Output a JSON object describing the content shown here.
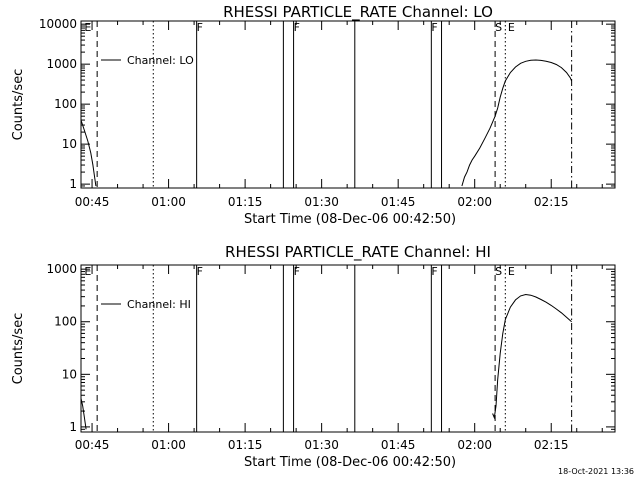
{
  "footer_timestamp": "18-Oct-2021 13:36",
  "chart_data": [
    {
      "type": "line",
      "title": "RHESSI PARTICLE_RATE Channel: LO",
      "xlabel": "Start Time (08-Dec-06 00:42:50)",
      "ylabel": "Counts/sec",
      "xlim": [
        "00:42:50",
        "02:27:30"
      ],
      "x_ticks": [
        "00:45",
        "01:00",
        "01:15",
        "01:30",
        "01:45",
        "02:00",
        "02:15"
      ],
      "y_scale": "log",
      "ylim": [
        0.8,
        12000
      ],
      "y_ticks": [
        "1",
        "10",
        "100",
        "1000",
        "10000"
      ],
      "legend": {
        "entries": [
          "Channel: LO"
        ],
        "position": "top-left"
      },
      "grid": false,
      "flag_labels": [
        {
          "text": "E",
          "time": "00:43:30"
        },
        {
          "text": "F",
          "time": "01:05:30"
        },
        {
          "text": "F",
          "time": "01:24:30"
        },
        {
          "text": "F",
          "time": "01:51:30"
        },
        {
          "text": "S",
          "time": "02:04:00"
        },
        {
          "text": "E",
          "time": "02:06:30"
        }
      ],
      "markers": [
        {
          "time": "00:46:00",
          "style": "dashed"
        },
        {
          "time": "00:57:00",
          "style": "dotted"
        },
        {
          "time": "01:05:30",
          "style": "solid"
        },
        {
          "time": "01:22:30",
          "style": "solid"
        },
        {
          "time": "01:24:30",
          "style": "solid"
        },
        {
          "time": "01:36:30",
          "style": "solid"
        },
        {
          "time": "01:51:30",
          "style": "solid"
        },
        {
          "time": "01:53:30",
          "style": "solid"
        },
        {
          "time": "02:04:00",
          "style": "dashed"
        },
        {
          "time": "02:06:00",
          "style": "dotted"
        },
        {
          "time": "02:19:00",
          "style": "dashdot"
        }
      ],
      "series": [
        {
          "name": "Channel: LO",
          "segments": [
            [
              [
                "00:42:50",
                40
              ],
              [
                "00:43:30",
                22
              ],
              [
                "00:44:10",
                12
              ],
              [
                "00:44:45",
                6
              ],
              [
                "00:45:10",
                3
              ],
              [
                "00:45:30",
                1.5
              ],
              [
                "00:45:45",
                0.9
              ]
            ],
            [
              [
                "01:57:30",
                0.9
              ],
              [
                "01:58:00",
                1.5
              ],
              [
                "01:58:30",
                2
              ],
              [
                "01:59:00",
                3
              ],
              [
                "01:59:30",
                4
              ],
              [
                "02:00:00",
                5
              ],
              [
                "02:01:00",
                8
              ],
              [
                "02:02:00",
                14
              ],
              [
                "02:03:00",
                25
              ],
              [
                "02:04:00",
                50
              ],
              [
                "02:04:30",
                80
              ],
              [
                "02:05:00",
                150
              ],
              [
                "02:05:30",
                250
              ],
              [
                "02:06:00",
                380
              ],
              [
                "02:07:00",
                620
              ],
              [
                "02:08:00",
                850
              ],
              [
                "02:09:00",
                1050
              ],
              [
                "02:10:00",
                1180
              ],
              [
                "02:11:00",
                1250
              ],
              [
                "02:12:00",
                1270
              ],
              [
                "02:13:00",
                1240
              ],
              [
                "02:14:00",
                1180
              ],
              [
                "02:15:00",
                1100
              ],
              [
                "02:16:00",
                980
              ],
              [
                "02:17:00",
                820
              ],
              [
                "02:18:00",
                620
              ],
              [
                "02:18:45",
                450
              ],
              [
                "02:19:00",
                380
              ]
            ]
          ]
        }
      ]
    },
    {
      "type": "line",
      "title": "RHESSI PARTICLE_RATE Channel: HI",
      "xlabel": "Start Time (08-Dec-06 00:42:50)",
      "ylabel": "Counts/sec",
      "xlim": [
        "00:42:50",
        "02:27:30"
      ],
      "x_ticks": [
        "00:45",
        "01:00",
        "01:15",
        "01:30",
        "01:45",
        "02:00",
        "02:15"
      ],
      "y_scale": "log",
      "ylim": [
        0.8,
        1200
      ],
      "y_ticks": [
        "1",
        "10",
        "100",
        "1000"
      ],
      "legend": {
        "entries": [
          "Channel: HI"
        ],
        "position": "top-left"
      },
      "grid": false,
      "flag_labels": [
        {
          "text": "E",
          "time": "00:43:30"
        },
        {
          "text": "F",
          "time": "01:05:30"
        },
        {
          "text": "F",
          "time": "01:24:30"
        },
        {
          "text": "F",
          "time": "01:51:30"
        },
        {
          "text": "S",
          "time": "02:04:00"
        },
        {
          "text": "E",
          "time": "02:06:30"
        }
      ],
      "markers": [
        {
          "time": "00:46:00",
          "style": "dashed"
        },
        {
          "time": "00:57:00",
          "style": "dotted"
        },
        {
          "time": "01:05:30",
          "style": "solid"
        },
        {
          "time": "01:22:30",
          "style": "solid"
        },
        {
          "time": "01:24:30",
          "style": "solid"
        },
        {
          "time": "01:36:30",
          "style": "solid"
        },
        {
          "time": "01:51:30",
          "style": "solid"
        },
        {
          "time": "01:53:30",
          "style": "solid"
        },
        {
          "time": "02:04:00",
          "style": "dashed"
        },
        {
          "time": "02:06:00",
          "style": "dotted"
        },
        {
          "time": "02:19:00",
          "style": "dashdot"
        }
      ],
      "series": [
        {
          "name": "Channel: HI",
          "segments": [
            [
              [
                "00:42:50",
                3.5
              ],
              [
                "00:43:10",
                2.5
              ],
              [
                "00:43:30",
                1.5
              ],
              [
                "00:43:50",
                0.9
              ]
            ],
            [
              [
                "02:03:30",
                1.8
              ],
              [
                "02:03:50",
                1.5
              ],
              [
                "02:04:10",
                2.5
              ],
              [
                "02:04:30",
                8
              ],
              [
                "02:05:00",
                25
              ],
              [
                "02:05:30",
                60
              ],
              [
                "02:06:00",
                110
              ],
              [
                "02:07:00",
                190
              ],
              [
                "02:08:00",
                260
              ],
              [
                "02:09:00",
                310
              ],
              [
                "02:10:00",
                330
              ],
              [
                "02:11:00",
                320
              ],
              [
                "02:12:00",
                295
              ],
              [
                "02:13:00",
                265
              ],
              [
                "02:14:00",
                235
              ],
              [
                "02:15:00",
                205
              ],
              [
                "02:16:00",
                175
              ],
              [
                "02:17:00",
                148
              ],
              [
                "02:18:00",
                122
              ],
              [
                "02:19:00",
                100
              ]
            ]
          ]
        }
      ]
    }
  ]
}
